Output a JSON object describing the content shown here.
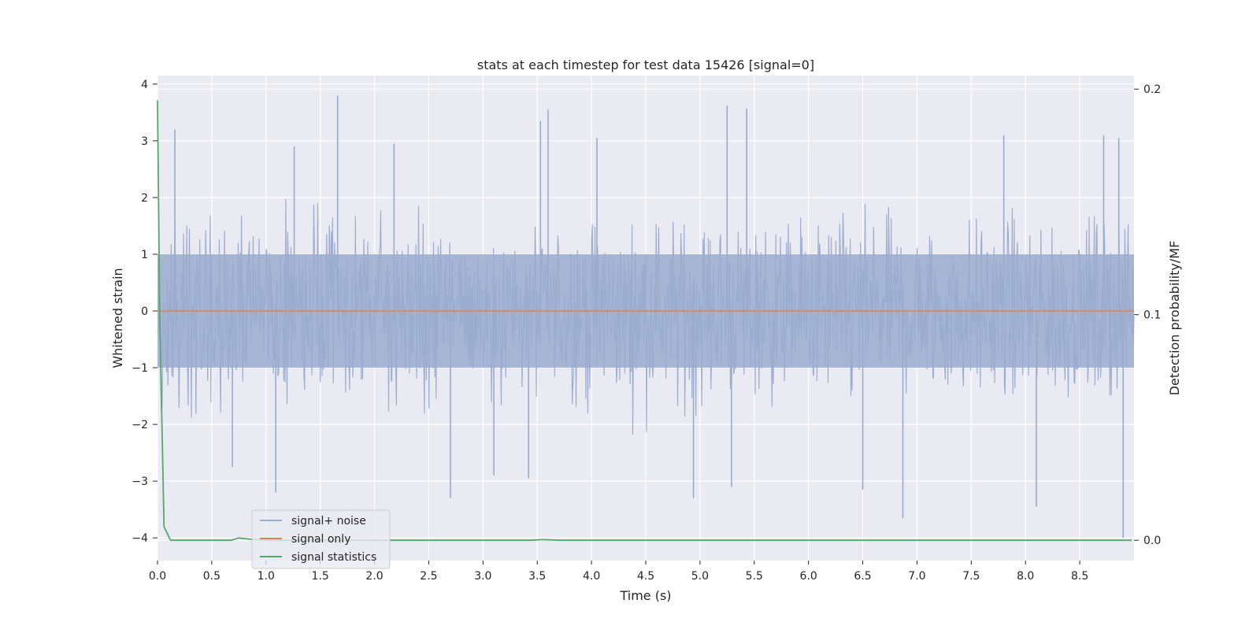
{
  "chart_data": {
    "type": "line",
    "title": "stats at each timestep for test data 15426 [signal=0]",
    "xlabel": "Time (s)",
    "ylabel": "Whitened strain",
    "y2label": "Detection probability/MF",
    "xlim": [
      0,
      9.0
    ],
    "ylim": [
      -4.4,
      4.15
    ],
    "y2lim": [
      -0.009,
      0.206
    ],
    "x_ticks": [
      0.0,
      0.5,
      1.0,
      1.5,
      2.0,
      2.5,
      3.0,
      3.5,
      4.0,
      4.5,
      5.0,
      5.5,
      6.0,
      6.5,
      7.0,
      7.5,
      8.0,
      8.5
    ],
    "x_tick_labels": [
      "0.0",
      "0.5",
      "1.0",
      "1.5",
      "2.0",
      "2.5",
      "3.0",
      "3.5",
      "4.0",
      "4.5",
      "5.0",
      "5.5",
      "6.0",
      "6.5",
      "7.0",
      "7.5",
      "8.0",
      "8.5"
    ],
    "y_ticks": [
      4,
      3,
      2,
      1,
      0,
      -1,
      -2,
      -3,
      -4
    ],
    "y_tick_labels": [
      "4",
      "3",
      "2",
      "1",
      "0",
      "−1",
      "−2",
      "−3",
      "−4"
    ],
    "y2_ticks": [
      0.2,
      0.1,
      0.0
    ],
    "y2_tick_labels": [
      "0.2",
      "0.1",
      "0.0"
    ],
    "grid": true,
    "legend_position": "lower-left",
    "series": [
      {
        "name": "signal+ noise",
        "axis": "left",
        "color": "#9aabcf",
        "noise_envelope": {
          "typical_min": -1.8,
          "typical_max": 2.0,
          "x_start": 0.0,
          "x_end": 9.0
        },
        "peaks": [
          {
            "x": 0.16,
            "y": 3.2
          },
          {
            "x": 1.66,
            "y": 3.8
          },
          {
            "x": 1.26,
            "y": 2.9
          },
          {
            "x": 2.18,
            "y": 2.95
          },
          {
            "x": 3.6,
            "y": 3.55
          },
          {
            "x": 3.53,
            "y": 3.35
          },
          {
            "x": 4.05,
            "y": 3.05
          },
          {
            "x": 5.25,
            "y": 3.62
          },
          {
            "x": 5.43,
            "y": 3.57
          },
          {
            "x": 7.8,
            "y": 3.1
          },
          {
            "x": 8.72,
            "y": 3.1
          },
          {
            "x": 8.86,
            "y": 3.05
          },
          {
            "x": 1.09,
            "y": -3.2
          },
          {
            "x": 2.7,
            "y": -3.3
          },
          {
            "x": 4.94,
            "y": -3.3
          },
          {
            "x": 5.29,
            "y": -3.1
          },
          {
            "x": 6.5,
            "y": -3.15
          },
          {
            "x": 6.87,
            "y": -3.65
          },
          {
            "x": 8.1,
            "y": -3.45
          },
          {
            "x": 8.9,
            "y": -4.0
          },
          {
            "x": 0.69,
            "y": -2.75
          },
          {
            "x": 3.1,
            "y": -2.9
          },
          {
            "x": 3.42,
            "y": -2.95
          }
        ]
      },
      {
        "name": "signal only",
        "axis": "left",
        "color": "#dd8452",
        "x": [
          0.0,
          9.0
        ],
        "y": [
          0.0,
          0.0
        ]
      },
      {
        "name": "signal statistics",
        "axis": "right",
        "color": "#55a868",
        "x": [
          0.0,
          0.02,
          0.06,
          0.12,
          0.25,
          0.5,
          0.68,
          0.75,
          0.85,
          1.0,
          1.5,
          2.0,
          3.0,
          3.45,
          3.55,
          3.7,
          4.0,
          5.0,
          6.0,
          7.0,
          8.0,
          8.98
        ],
        "y": [
          0.195,
          0.1,
          0.006,
          0.0,
          0.0,
          0.0,
          0.0,
          0.001,
          0.0005,
          0.0,
          0.0,
          0.0,
          0.0,
          0.0,
          0.0003,
          0.0,
          0.0,
          0.0,
          0.0,
          0.0,
          0.0,
          0.0
        ]
      }
    ]
  }
}
